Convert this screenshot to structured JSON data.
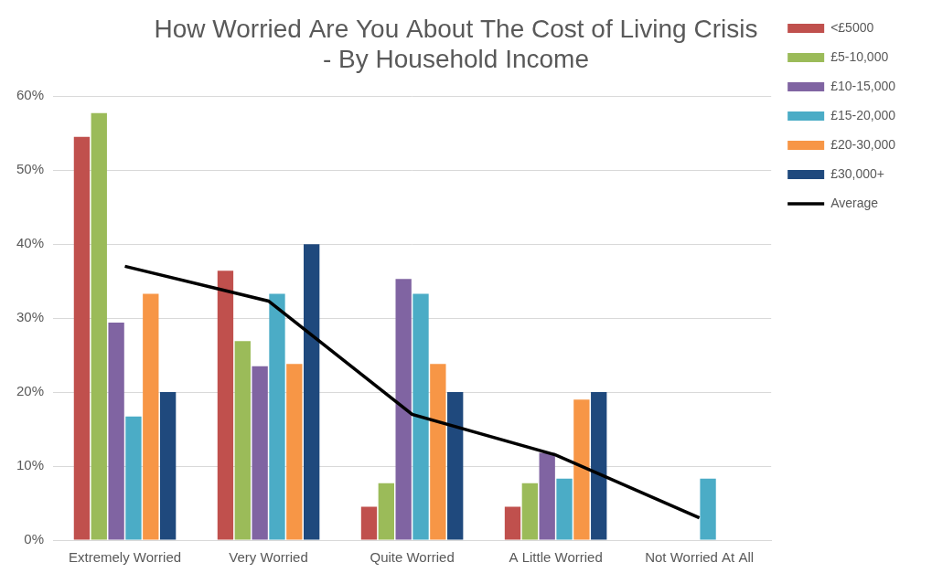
{
  "chart_data": {
    "type": "bar",
    "title": [
      "How Worried Are You About The Cost of Living Crisis",
      "- By Household Income"
    ],
    "categories": [
      "Extremely Worried",
      "Very Worried",
      "Quite Worried",
      "A Little Worried",
      "Not Worried At All"
    ],
    "series": [
      {
        "name": "<£5000",
        "color": "#c0504d",
        "values": [
          54.5,
          36.4,
          4.5,
          4.5,
          0
        ]
      },
      {
        "name": "£5-10,000",
        "color": "#9bbb59",
        "values": [
          57.7,
          26.9,
          7.7,
          7.7,
          0
        ]
      },
      {
        "name": "£10-15,000",
        "color": "#8064a2",
        "values": [
          29.4,
          23.5,
          35.3,
          11.8,
          0
        ]
      },
      {
        "name": "£15-20,000",
        "color": "#4bacc6",
        "values": [
          16.7,
          33.3,
          33.3,
          8.3,
          8.3
        ]
      },
      {
        "name": "£20-30,000",
        "color": "#f79646",
        "values": [
          33.3,
          23.8,
          23.8,
          19.0,
          0
        ]
      },
      {
        "name": "£30,000+",
        "color": "#1f497d",
        "values": [
          20,
          40,
          20,
          20,
          0
        ]
      },
      {
        "name": "Average",
        "color": "#000000",
        "type": "line",
        "marker": "none",
        "values": [
          37,
          32.3,
          17,
          11.5,
          3
        ]
      }
    ],
    "ylim": [
      0,
      60
    ],
    "yticks": [
      {
        "value": 0,
        "label": "0%"
      },
      {
        "value": 10,
        "label": "10%"
      },
      {
        "value": 20,
        "label": "20%"
      },
      {
        "value": 30,
        "label": "30%"
      },
      {
        "value": 40,
        "label": "40%"
      },
      {
        "value": 50,
        "label": "50%"
      },
      {
        "value": 60,
        "label": "60%"
      }
    ],
    "grid": true,
    "legend": "right"
  }
}
